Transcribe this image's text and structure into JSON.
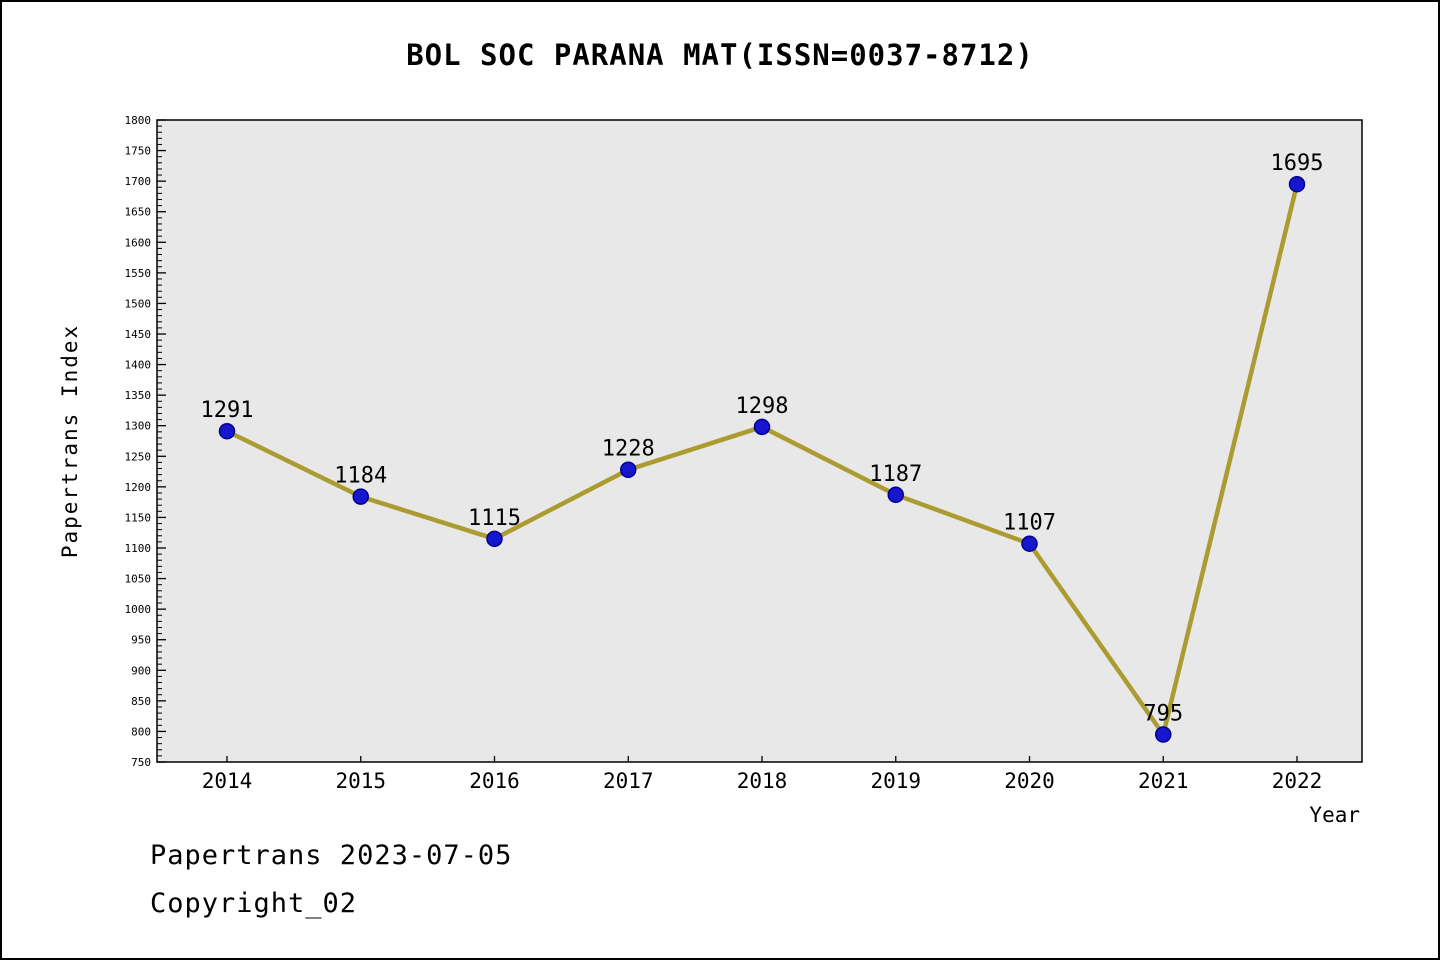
{
  "footer": {
    "line1": "Papertrans 2023-07-05",
    "line2": "Copyright_02"
  },
  "chart_data": {
    "type": "line",
    "title": "BOL SOC PARANA MAT(ISSN=0037-8712)",
    "xlabel": "Year",
    "ylabel": "Papertrans Index",
    "categories": [
      2014,
      2015,
      2016,
      2017,
      2018,
      2019,
      2020,
      2021,
      2022
    ],
    "series": [
      {
        "name": "Papertrans Index",
        "values": [
          1291,
          1184,
          1115,
          1228,
          1298,
          1187,
          1107,
          795,
          1695
        ]
      }
    ],
    "ylim": [
      750,
      1800
    ],
    "ytick_step": 50,
    "yminor_step": 10,
    "grid": false,
    "legend_position": "none",
    "point_labels": [
      "1291",
      "1184",
      "1115",
      "1228",
      "1298",
      "1187",
      "1107",
      "795",
      "1695"
    ],
    "colors": {
      "line": "#ac9b30",
      "marker_fill": "#1616cf",
      "marker_edge": "#00008b",
      "plot_bg": "#e8e8e8",
      "axis": "#000000",
      "text": "#000000"
    }
  }
}
